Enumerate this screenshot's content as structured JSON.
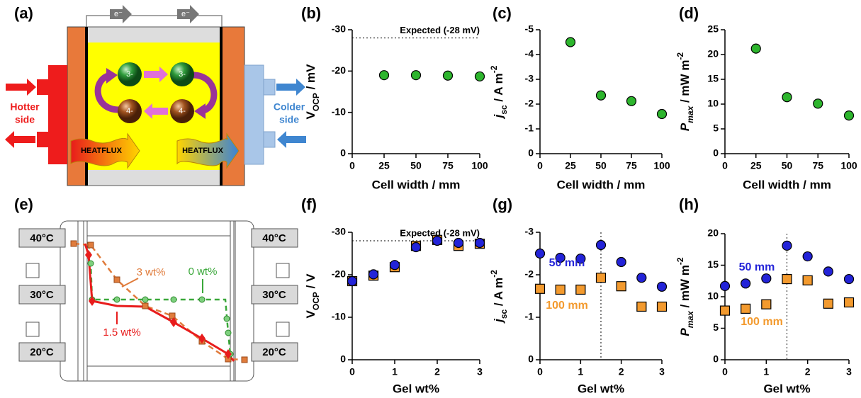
{
  "figure": {
    "panel_a": {
      "label": "(a)",
      "electrons": [
        "e⁻",
        "e⁻"
      ],
      "ions": [
        "3-",
        "3-",
        "4-",
        "4-"
      ],
      "heat_flux": [
        "HEATFLUX",
        "HEATFLUX"
      ],
      "hot_side": [
        "Hotter",
        "side"
      ],
      "cold_side": [
        "Colder",
        "side"
      ]
    },
    "panel_e": {
      "label": "(e)",
      "left_temps": [
        "40°C",
        "30°C",
        "20°C"
      ],
      "right_temps": [
        "40°C",
        "30°C",
        "20°C"
      ],
      "curve_labels": [
        "3 wt%",
        "0 wt%",
        "1.5 wt%"
      ]
    }
  },
  "chart_data": [
    {
      "type": "scatter",
      "label": "(b)",
      "xlabel": "Cell width / mm",
      "ylabel": [
        {
          "text": "V"
        },
        {
          "text": "OCP",
          "shift": "sub"
        },
        {
          "text": " / mV"
        }
      ],
      "x": [
        25,
        50,
        75,
        100
      ],
      "series": [
        {
          "color": "#2db52d",
          "marker": "circle",
          "values": [
            -19,
            -19,
            -18.9,
            -18.7
          ]
        }
      ],
      "xlim": [
        0,
        100
      ],
      "xticks": [
        0,
        25,
        50,
        75,
        100
      ],
      "ylim": [
        0,
        -30
      ],
      "yticks": [
        0,
        -10,
        -20,
        -30
      ],
      "hline": {
        "value": -28,
        "label": "Expected (-28 mV)"
      }
    },
    {
      "type": "scatter",
      "label": "(c)",
      "xlabel": "Cell width / mm",
      "ylabel": [
        {
          "text": "j",
          "italic": true
        },
        {
          "text": "sc",
          "shift": "sub"
        },
        {
          "text": " / A m"
        },
        {
          "text": "-2",
          "shift": "super"
        }
      ],
      "x": [
        25,
        50,
        75,
        100
      ],
      "series": [
        {
          "color": "#2db52d",
          "marker": "circle",
          "values": [
            -4.5,
            -2.35,
            -2.12,
            -1.6
          ]
        }
      ],
      "xlim": [
        0,
        100
      ],
      "xticks": [
        0,
        25,
        50,
        75,
        100
      ],
      "ylim": [
        0,
        -5
      ],
      "yticks": [
        0,
        -1,
        -2,
        -3,
        -4,
        -5
      ]
    },
    {
      "type": "scatter",
      "label": "(d)",
      "xlabel": "Cell width / mm",
      "ylabel": [
        {
          "text": "P",
          "italic": true
        },
        {
          "text": "max",
          "shift": "sub",
          "italic": true
        },
        {
          "text": " / mW m"
        },
        {
          "text": "-2",
          "shift": "super"
        }
      ],
      "x": [
        25,
        50,
        75,
        100
      ],
      "series": [
        {
          "color": "#2db52d",
          "marker": "circle",
          "values": [
            21.2,
            11.4,
            10.1,
            7.7
          ]
        }
      ],
      "xlim": [
        0,
        100
      ],
      "xticks": [
        0,
        25,
        50,
        75,
        100
      ],
      "ylim": [
        0,
        25
      ],
      "yticks": [
        0,
        5,
        10,
        15,
        20,
        25
      ]
    },
    {
      "type": "scatter",
      "label": "(f)",
      "xlabel": "Gel wt%",
      "ylabel": [
        {
          "text": "V"
        },
        {
          "text": "OCP",
          "shift": "sub"
        },
        {
          "text": " / V"
        }
      ],
      "x": [
        0,
        0.5,
        1,
        1.5,
        2,
        2.5,
        3
      ],
      "series": [
        {
          "color": "#f39a2e",
          "marker": "square",
          "values": [
            -18.5,
            -19.8,
            -21.8,
            -26.8,
            -28.2,
            -26.8,
            -27.3
          ]
        },
        {
          "color": "#2323d8",
          "marker": "circle",
          "values": [
            -18.5,
            -20.1,
            -22.3,
            -26.5,
            -28,
            -27.5,
            -27.5
          ]
        }
      ],
      "xlim": [
        0,
        3
      ],
      "xticks": [
        0,
        1,
        2,
        3
      ],
      "ylim": [
        0,
        -30
      ],
      "yticks": [
        0,
        -10,
        -20,
        -30
      ],
      "hline": {
        "value": -28,
        "label": "Expected (-28 mV)"
      }
    },
    {
      "type": "scatter",
      "label": "(g)",
      "xlabel": "Gel wt%",
      "ylabel": [
        {
          "text": "j",
          "italic": true
        },
        {
          "text": "sc",
          "shift": "sub"
        },
        {
          "text": " / A m"
        },
        {
          "text": "-2",
          "shift": "super"
        }
      ],
      "x": [
        0,
        0.5,
        1,
        1.5,
        2,
        2.5,
        3
      ],
      "series": [
        {
          "name": "50 mm",
          "color": "#2323d8",
          "marker": "circle",
          "values": [
            -2.5,
            -2.4,
            -2.38,
            -2.7,
            -2.3,
            -1.93,
            -1.72
          ]
        },
        {
          "name": "100 mm",
          "color": "#f39a2e",
          "marker": "square",
          "values": [
            -1.67,
            -1.65,
            -1.65,
            -1.93,
            -1.73,
            -1.25,
            -1.25
          ]
        }
      ],
      "xlim": [
        0,
        3
      ],
      "xticks": [
        0,
        1,
        2,
        3
      ],
      "ylim": [
        0,
        -3
      ],
      "yticks": [
        0,
        -1,
        -2,
        -3
      ],
      "vline": 1.5
    },
    {
      "type": "scatter",
      "label": "(h)",
      "xlabel": "Gel wt%",
      "ylabel": [
        {
          "text": "P",
          "italic": true
        },
        {
          "text": "max",
          "shift": "sub",
          "italic": true
        },
        {
          "text": " / mW m"
        },
        {
          "text": "-2",
          "shift": "super"
        }
      ],
      "x": [
        0,
        0.5,
        1,
        1.5,
        2,
        2.5,
        3
      ],
      "series": [
        {
          "name": "50 mm",
          "color": "#2323d8",
          "marker": "circle",
          "values": [
            11.7,
            12.1,
            12.9,
            18.1,
            16.4,
            14,
            12.8
          ]
        },
        {
          "name": "100 mm",
          "color": "#f39a2e",
          "marker": "square",
          "values": [
            7.8,
            8.1,
            8.8,
            12.8,
            12.6,
            8.9,
            9.1
          ]
        }
      ],
      "xlim": [
        0,
        3
      ],
      "xticks": [
        0,
        1,
        2,
        3
      ],
      "ylim": [
        0,
        20
      ],
      "yticks": [
        0,
        5,
        10,
        15,
        20
      ],
      "vline": 1.5
    }
  ]
}
